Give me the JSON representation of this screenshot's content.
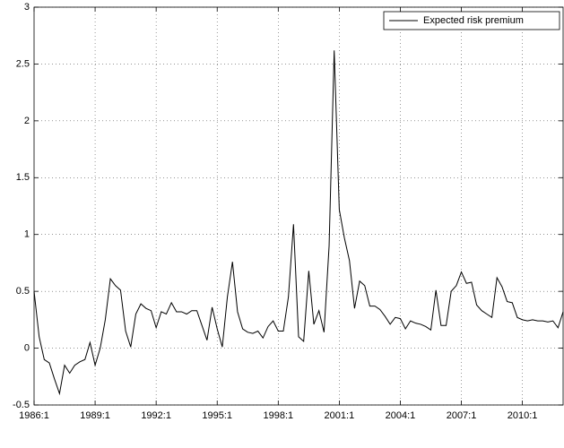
{
  "chart_data": {
    "type": "line",
    "categories": [
      "1986:1",
      null,
      null,
      null,
      null,
      null,
      null,
      null,
      null,
      null,
      null,
      null,
      "1989:1",
      null,
      null,
      null,
      null,
      null,
      null,
      null,
      null,
      null,
      null,
      null,
      "1992:1",
      null,
      null,
      null,
      null,
      null,
      null,
      null,
      null,
      null,
      null,
      null,
      "1995:1",
      null,
      null,
      null,
      null,
      null,
      null,
      null,
      null,
      null,
      null,
      null,
      "1998:1",
      null,
      null,
      null,
      null,
      null,
      null,
      null,
      null,
      null,
      null,
      null,
      "2001:1",
      null,
      null,
      null,
      null,
      null,
      null,
      null,
      null,
      null,
      null,
      null,
      "2004:1",
      null,
      null,
      null,
      null,
      null,
      null,
      null,
      null,
      null,
      null,
      null,
      "2007:1",
      null,
      null,
      null,
      null,
      null,
      null,
      null,
      null,
      null,
      null,
      null,
      "2010:1",
      null,
      null,
      null,
      null,
      null,
      null,
      null,
      null
    ],
    "series": [
      {
        "name": "Expected risk premium",
        "color": "#000000",
        "values": [
          0.5,
          0.1,
          -0.1,
          -0.13,
          -0.27,
          -0.4,
          -0.15,
          -0.22,
          -0.15,
          -0.12,
          -0.1,
          0.05,
          -0.15,
          0.0,
          0.25,
          0.61,
          0.55,
          0.51,
          0.15,
          0.01,
          0.3,
          0.39,
          0.35,
          0.33,
          0.18,
          0.32,
          0.3,
          0.4,
          0.32,
          0.32,
          0.3,
          0.33,
          0.33,
          0.2,
          0.07,
          0.36,
          0.17,
          0.01,
          0.45,
          0.76,
          0.32,
          0.17,
          0.14,
          0.13,
          0.15,
          0.09,
          0.19,
          0.24,
          0.15,
          0.15,
          0.45,
          1.09,
          0.1,
          0.06,
          0.68,
          0.21,
          0.33,
          0.14,
          0.9,
          2.62,
          1.22,
          0.97,
          0.77,
          0.35,
          0.59,
          0.55,
          0.37,
          0.37,
          0.34,
          0.28,
          0.21,
          0.27,
          0.26,
          0.17,
          0.24,
          0.22,
          0.21,
          0.19,
          0.16,
          0.51,
          0.2,
          0.2,
          0.5,
          0.55,
          0.67,
          0.57,
          0.58,
          0.38,
          0.33,
          0.3,
          0.27,
          0.62,
          0.54,
          0.41,
          0.4,
          0.27,
          0.25,
          0.24,
          0.25,
          0.24,
          0.24,
          0.23,
          0.24,
          0.18,
          0.32
        ]
      }
    ],
    "ylim": [
      -0.5,
      3
    ],
    "yticks": [
      -0.5,
      0,
      0.5,
      1,
      1.5,
      2,
      2.5,
      3
    ],
    "grid": true,
    "legend": "top-right"
  }
}
